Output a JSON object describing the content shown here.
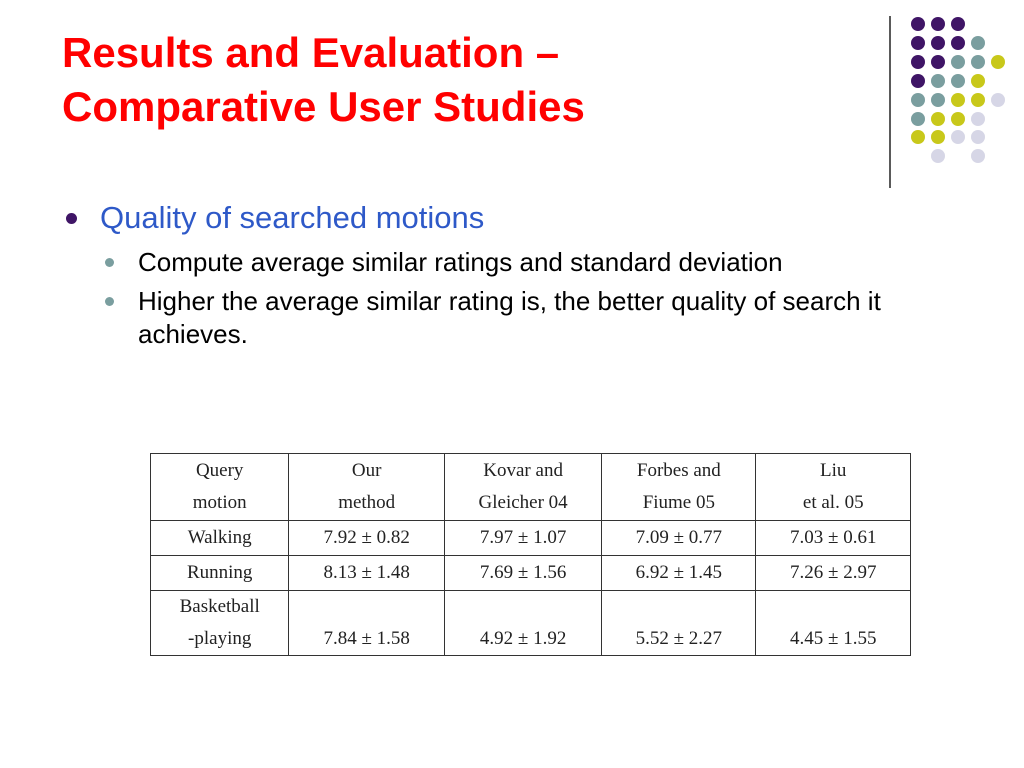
{
  "slide": {
    "title_line1": "Results and Evaluation –",
    "title_line2": "Comparative User Studies",
    "bullet_main": "Quality of searched motions",
    "sub_bullets": [
      "Compute average similar ratings and standard deviation",
      "Higher the average similar rating is, the better quality of search it achieves."
    ]
  },
  "colors": {
    "title": "#ff0000",
    "bullet_main": "#2e59c8",
    "dot_purple": "#3f1566",
    "dot_teal": "#7a9e9f",
    "dot_yellow": "#c8c81a",
    "dot_lavender": "#d6d6e6"
  },
  "table": {
    "headers": [
      [
        "Query",
        "motion"
      ],
      [
        "Our",
        "method"
      ],
      [
        "Kovar and",
        "Gleicher 04"
      ],
      [
        "Forbes and",
        "Fiume 05"
      ],
      [
        "Liu",
        "et al. 05"
      ]
    ],
    "rows": [
      {
        "motion": [
          "Walking"
        ],
        "values": [
          "7.92 ± 0.82",
          "7.97 ± 1.07",
          "7.09 ± 0.77",
          "7.03 ± 0.61"
        ]
      },
      {
        "motion": [
          "Running"
        ],
        "values": [
          "8.13 ± 1.48",
          "7.69 ± 1.56",
          "6.92 ± 1.45",
          "7.26 ± 2.97"
        ]
      },
      {
        "motion": [
          "Basketball",
          "-playing"
        ],
        "values": [
          "7.84 ± 1.58",
          "4.92 ± 1.92",
          "5.52 ± 2.27",
          "4.45 ± 1.55"
        ]
      }
    ]
  }
}
